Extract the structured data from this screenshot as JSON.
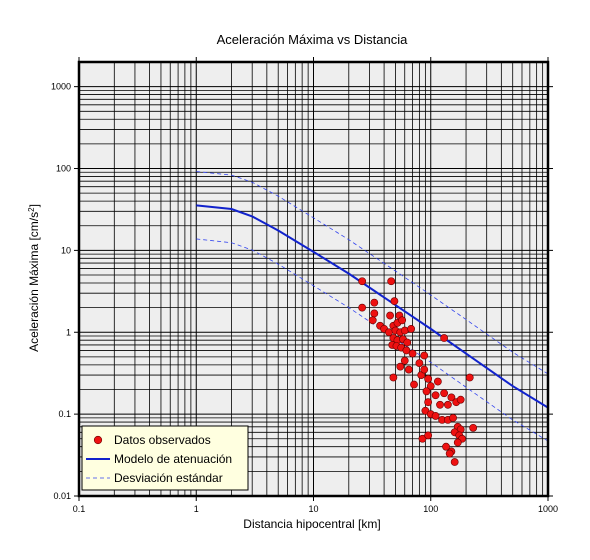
{
  "chart_data": {
    "type": "scatter",
    "title": "Aceleración Máxima vs Distancia",
    "xlabel": "Distancia hipocentral [km]",
    "ylabel_main": "Aceleración Máxima [cm/s",
    "ylabel_sup": "2",
    "ylabel_close": "]",
    "xscale": "log",
    "yscale": "log",
    "xlim": [
      0.1,
      1000
    ],
    "ylim": [
      0.01,
      2000
    ],
    "xtick_values": [
      0.1,
      1,
      10,
      100,
      1000
    ],
    "xtick_labels": [
      "0.1",
      "1",
      "10",
      "100",
      "1000"
    ],
    "ytick_values": [
      0.01,
      0.1,
      1,
      10,
      100,
      1000
    ],
    "ytick_labels": [
      "0.01",
      "0.1",
      "1",
      "10",
      "100",
      "1000"
    ],
    "grid": true,
    "legend_position": "bottom-left",
    "colors": {
      "observed": "#ee1111",
      "model": "#1122cc",
      "std": "#3344ee",
      "legend_bg": "#ffffe0",
      "plot_bg": "#eeeeee"
    },
    "series": [
      {
        "name": "Datos observados",
        "kind": "points",
        "points": [
          [
            26,
            4.2
          ],
          [
            46,
            4.2
          ],
          [
            26,
            2.0
          ],
          [
            33,
            2.3
          ],
          [
            49,
            2.4
          ],
          [
            33,
            1.7
          ],
          [
            45,
            1.6
          ],
          [
            54,
            1.6
          ],
          [
            32,
            1.4
          ],
          [
            48,
            1.2
          ],
          [
            52,
            1.3
          ],
          [
            57,
            1.4
          ],
          [
            37,
            1.2
          ],
          [
            40,
            1.1
          ],
          [
            44,
            1.0
          ],
          [
            50,
            1.05
          ],
          [
            55,
            1.0
          ],
          [
            60,
            1.05
          ],
          [
            68,
            1.1
          ],
          [
            130,
            0.85
          ],
          [
            48,
            0.85
          ],
          [
            52,
            0.8
          ],
          [
            58,
            0.82
          ],
          [
            63,
            0.75
          ],
          [
            47,
            0.7
          ],
          [
            51,
            0.68
          ],
          [
            56,
            0.65
          ],
          [
            62,
            0.6
          ],
          [
            70,
            0.55
          ],
          [
            88,
            0.52
          ],
          [
            80,
            0.42
          ],
          [
            60,
            0.45
          ],
          [
            55,
            0.38
          ],
          [
            65,
            0.35
          ],
          [
            48,
            0.28
          ],
          [
            83,
            0.3
          ],
          [
            88,
            0.35
          ],
          [
            95,
            0.27
          ],
          [
            72,
            0.23
          ],
          [
            100,
            0.22
          ],
          [
            115,
            0.25
          ],
          [
            215,
            0.28
          ],
          [
            92,
            0.19
          ],
          [
            110,
            0.17
          ],
          [
            130,
            0.18
          ],
          [
            150,
            0.16
          ],
          [
            95,
            0.14
          ],
          [
            120,
            0.13
          ],
          [
            140,
            0.13
          ],
          [
            165,
            0.14
          ],
          [
            180,
            0.15
          ],
          [
            90,
            0.11
          ],
          [
            100,
            0.1
          ],
          [
            110,
            0.095
          ],
          [
            125,
            0.085
          ],
          [
            140,
            0.085
          ],
          [
            155,
            0.09
          ],
          [
            170,
            0.07
          ],
          [
            180,
            0.065
          ],
          [
            160,
            0.06
          ],
          [
            175,
            0.055
          ],
          [
            185,
            0.05
          ],
          [
            170,
            0.045
          ],
          [
            85,
            0.05
          ],
          [
            95,
            0.055
          ],
          [
            135,
            0.04
          ],
          [
            150,
            0.035
          ],
          [
            145,
            0.033
          ],
          [
            160,
            0.026
          ],
          [
            230,
            0.068
          ]
        ]
      },
      {
        "name": "Modelo de atenuación",
        "kind": "line",
        "points": [
          [
            1,
            35.5
          ],
          [
            2,
            32
          ],
          [
            3,
            26
          ],
          [
            5,
            17.5
          ],
          [
            10,
            9.6
          ],
          [
            20,
            5.2
          ],
          [
            50,
            2.15
          ],
          [
            100,
            1.1
          ],
          [
            200,
            0.55
          ],
          [
            500,
            0.22
          ],
          [
            1000,
            0.12
          ]
        ]
      },
      {
        "name": "Desviación estándar",
        "kind": "dashed",
        "points": [
          [
            1,
            92
          ],
          [
            2,
            83
          ],
          [
            3,
            68
          ],
          [
            5,
            46
          ],
          [
            10,
            25
          ],
          [
            20,
            13.5
          ],
          [
            50,
            5.6
          ],
          [
            100,
            2.85
          ],
          [
            200,
            1.43
          ],
          [
            500,
            0.57
          ],
          [
            1000,
            0.31
          ]
        ]
      },
      {
        "name": "Desviación estándar lower",
        "kind": "dashed",
        "points": [
          [
            1,
            13.8
          ],
          [
            2,
            12.4
          ],
          [
            3,
            10.1
          ],
          [
            5,
            6.8
          ],
          [
            10,
            3.7
          ],
          [
            20,
            2.0
          ],
          [
            50,
            0.83
          ],
          [
            100,
            0.43
          ],
          [
            200,
            0.213
          ],
          [
            500,
            0.085
          ],
          [
            1000,
            0.047
          ]
        ]
      }
    ],
    "legend": [
      {
        "label": "Datos observados",
        "kind": "points"
      },
      {
        "label": "Modelo de atenuación",
        "kind": "line"
      },
      {
        "label": "Desviación estándar",
        "kind": "dashed"
      }
    ]
  }
}
